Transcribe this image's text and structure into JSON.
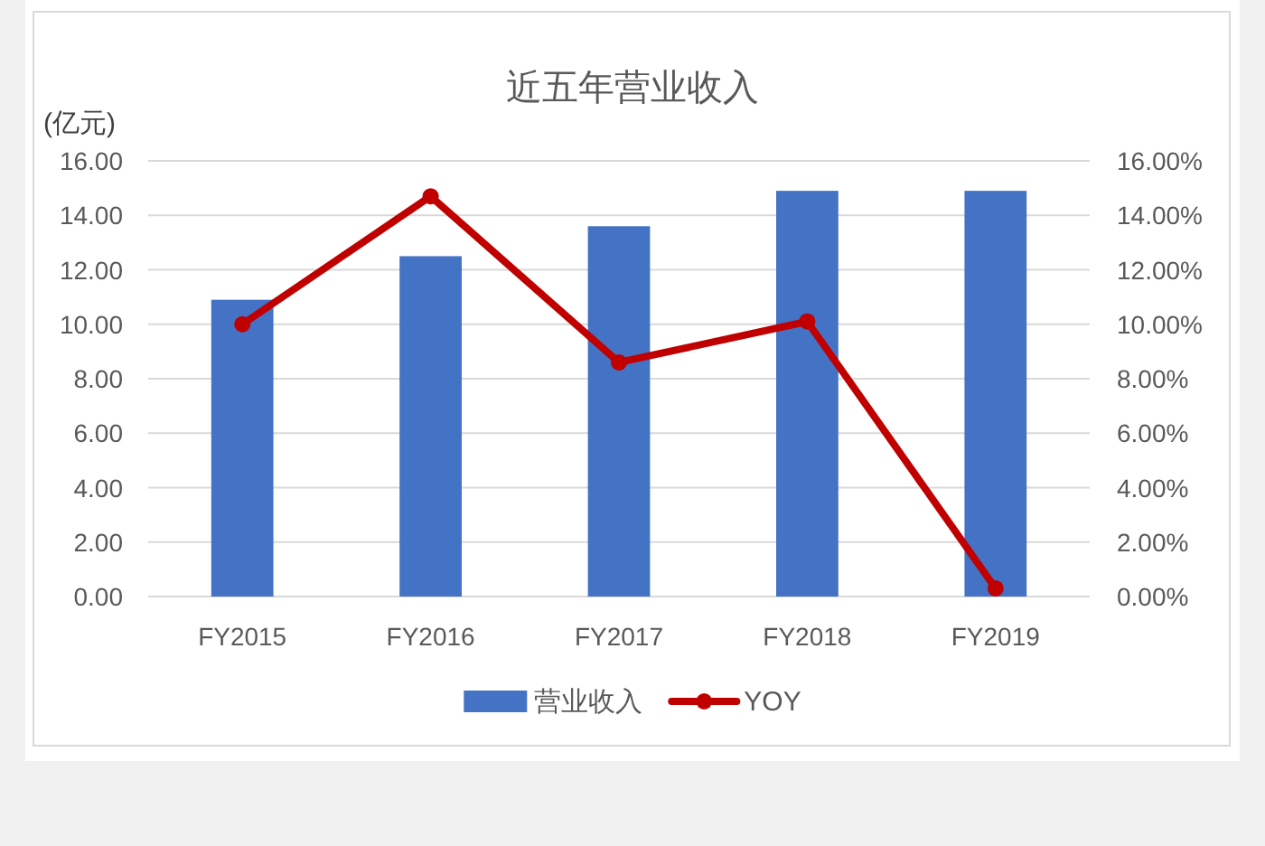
{
  "chart_data": {
    "type": "bar",
    "title": "近五年营业收入",
    "ylabel": "(亿元)",
    "categories": [
      "FY2015",
      "FY2016",
      "FY2017",
      "FY2018",
      "FY2019"
    ],
    "series": [
      {
        "name": "营业收入",
        "color": "#4472c4",
        "values": [
          10.9,
          12.5,
          13.6,
          14.9,
          14.9
        ]
      },
      {
        "name": "YOY",
        "type": "line",
        "axis": "y2",
        "color": "#c00000",
        "values": [
          10.0,
          14.7,
          8.6,
          10.1,
          0.3
        ]
      }
    ],
    "ylim": [
      0,
      16
    ],
    "yticks": [
      {
        "value": 0,
        "label": "0.00"
      },
      {
        "value": 2,
        "label": "2.00"
      },
      {
        "value": 4,
        "label": "4.00"
      },
      {
        "value": 6,
        "label": "6.00"
      },
      {
        "value": 8,
        "label": "8.00"
      },
      {
        "value": 10,
        "label": "10.00"
      },
      {
        "value": 12,
        "label": "12.00"
      },
      {
        "value": 14,
        "label": "14.00"
      },
      {
        "value": 16,
        "label": "16.00"
      }
    ],
    "y2lim": [
      0,
      16
    ],
    "y2ticks": [
      {
        "value": 0,
        "label": "0.00%"
      },
      {
        "value": 2,
        "label": "2.00%"
      },
      {
        "value": 4,
        "label": "4.00%"
      },
      {
        "value": 6,
        "label": "6.00%"
      },
      {
        "value": 8,
        "label": "8.00%"
      },
      {
        "value": 10,
        "label": "10.00%"
      },
      {
        "value": 12,
        "label": "12.00%"
      },
      {
        "value": 14,
        "label": "14.00%"
      },
      {
        "value": 16,
        "label": "16.00%"
      }
    ],
    "grid": "y",
    "legend": "bottom",
    "marker": "circle"
  }
}
